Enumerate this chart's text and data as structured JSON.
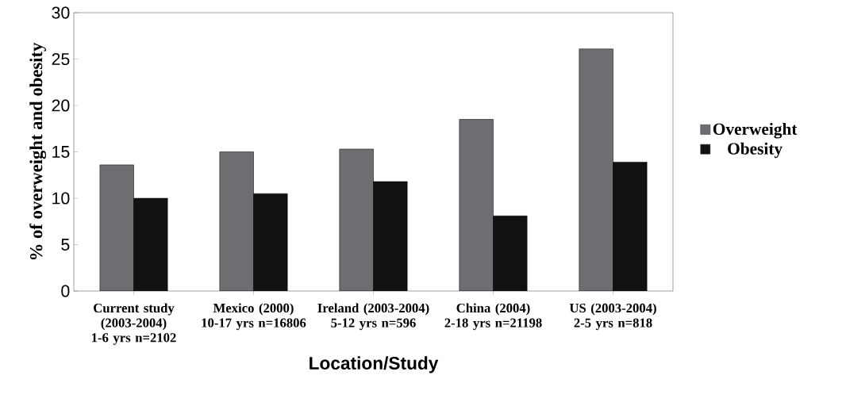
{
  "chart_data": {
    "type": "bar",
    "xlabel": "Location/Study",
    "ylabel": "% of overweight and obesity",
    "categories": [
      "Current study (2003-2004) 1-6 yrs n=2102",
      "Mexico (2000) 10-17 yrs n=16806",
      "Ireland (2003-2004) 5-12 yrs n=596",
      "China (2004) 2-18 yrs n=21198",
      "US (2003-2004) 2-5 yrs n=818"
    ],
    "series": [
      {
        "name": "Overweight",
        "color": "#6e6e72",
        "values": [
          13.6,
          15.0,
          15.3,
          18.5,
          26.1
        ]
      },
      {
        "name": "Obesity",
        "color": "#111111",
        "values": [
          10.0,
          10.5,
          11.8,
          8.1,
          13.9
        ]
      }
    ],
    "ylim": [
      0,
      30
    ],
    "yticks": [
      0,
      5,
      10,
      15,
      20,
      25,
      30
    ],
    "legend": "right"
  }
}
